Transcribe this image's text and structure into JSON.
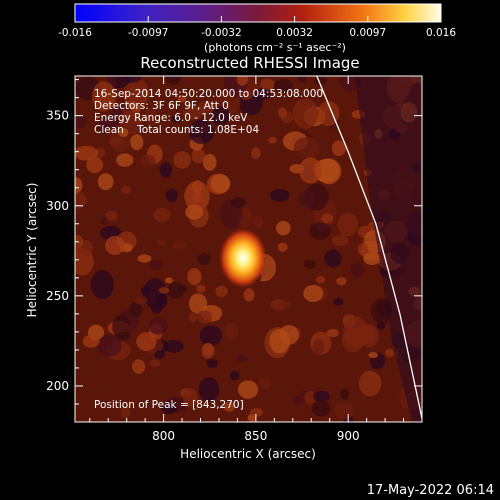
{
  "colorbar": {
    "ticks": [
      "-0.016",
      "-0.0097",
      "-0.0032",
      "0.0032",
      "0.0097",
      "0.016"
    ],
    "ticks_fill_fractions": [
      0.0,
      0.2,
      0.4,
      0.6,
      0.8,
      1.0
    ],
    "units_html": "(photons cm⁻² s⁻¹ asec⁻²)"
  },
  "image": {
    "title": "Reconstructed RHESSI Image",
    "info_lines": [
      "16-Sep-2014 04:50:20.000 to 04:53:08.000",
      "Detectors: 3F 6F 9F, Att 0",
      "Energy Range: 6.0 - 12.0 keV",
      "Clean    Total counts: 1.08E+04"
    ],
    "peak_label": "Position of Peak = [843,270]",
    "xlabel": "Heliocentric X (arcsec)",
    "ylabel": "Heliocentric Y (arcsec)",
    "x_ticks": [
      "800",
      "850",
      "900"
    ],
    "x_tick_values": [
      800,
      850,
      900
    ],
    "y_ticks": [
      "200",
      "250",
      "300",
      "350"
    ],
    "y_tick_values": [
      200,
      250,
      300,
      350
    ],
    "xlim": [
      752,
      940
    ],
    "ylim": [
      180,
      372
    ],
    "peak_position": [
      843,
      270
    ],
    "limb_points": [
      [
        883,
        372
      ],
      [
        900,
        330
      ],
      [
        915,
        290
      ],
      [
        928,
        240
      ],
      [
        940,
        182
      ]
    ]
  },
  "timestamp": "17-May-2022 06:14"
}
